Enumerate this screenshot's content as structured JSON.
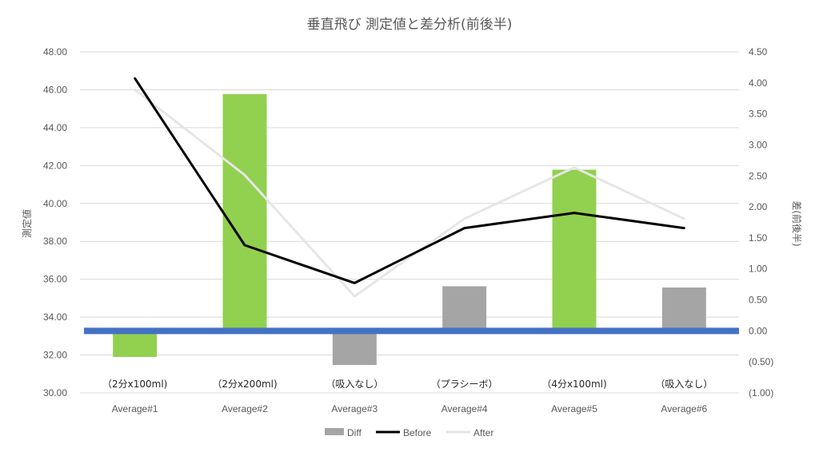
{
  "chart_data": {
    "type": "bar+line",
    "title": "垂直飛び 測定値と差分析(前後半)",
    "ylabel_left": "測定値",
    "ylabel_right": "差(前後半)",
    "ylim_left": [
      30,
      48
    ],
    "ylim_right": [
      -1,
      4.5
    ],
    "left_ticks": [
      "30.00",
      "32.00",
      "34.00",
      "36.00",
      "38.00",
      "40.00",
      "42.00",
      "44.00",
      "46.00",
      "48.00"
    ],
    "right_ticks": [
      {
        "value": -1.0,
        "label": "(1.00)",
        "negative": true
      },
      {
        "value": -0.5,
        "label": "(0.50)",
        "negative": true
      },
      {
        "value": 0.0,
        "label": "0.00",
        "negative": false
      },
      {
        "value": 0.5,
        "label": "0.50",
        "negative": false
      },
      {
        "value": 1.0,
        "label": "1.00",
        "negative": false
      },
      {
        "value": 1.5,
        "label": "1.50",
        "negative": false
      },
      {
        "value": 2.0,
        "label": "2.00",
        "negative": false
      },
      {
        "value": 2.5,
        "label": "2.50",
        "negative": false
      },
      {
        "value": 3.0,
        "label": "3.00",
        "negative": false
      },
      {
        "value": 3.5,
        "label": "3.50",
        "negative": false
      },
      {
        "value": 4.0,
        "label": "4.00",
        "negative": false
      },
      {
        "value": 4.5,
        "label": "4.50",
        "negative": false
      }
    ],
    "categories": [
      "Average#1",
      "Average#2",
      "Average#3",
      "Average#4",
      "Average#5",
      "Average#6"
    ],
    "category_notes": [
      "（2分x100ml)",
      "（2分x200ml)",
      "（吸入なし）",
      "（プラシーボ）",
      "（4分x100ml)",
      "（吸入なし）"
    ],
    "series": [
      {
        "name": "Diff",
        "type": "bar",
        "axis": "right",
        "values": [
          -0.42,
          3.82,
          -0.55,
          0.72,
          2.6,
          0.7
        ],
        "colors": [
          "#92d050",
          "#92d050",
          "#a5a5a5",
          "#a5a5a5",
          "#92d050",
          "#a5a5a5"
        ]
      },
      {
        "name": "Before",
        "type": "line",
        "axis": "left",
        "color": "#000000",
        "values": [
          46.6,
          37.8,
          35.8,
          38.7,
          39.5,
          38.7
        ]
      },
      {
        "name": "After",
        "type": "line",
        "axis": "left",
        "color": "#e6e6e6",
        "values": [
          46.0,
          41.5,
          35.1,
          39.2,
          41.9,
          39.2
        ]
      }
    ],
    "baseline_color": "#4472c4",
    "grid": true,
    "legend": "bottom"
  }
}
